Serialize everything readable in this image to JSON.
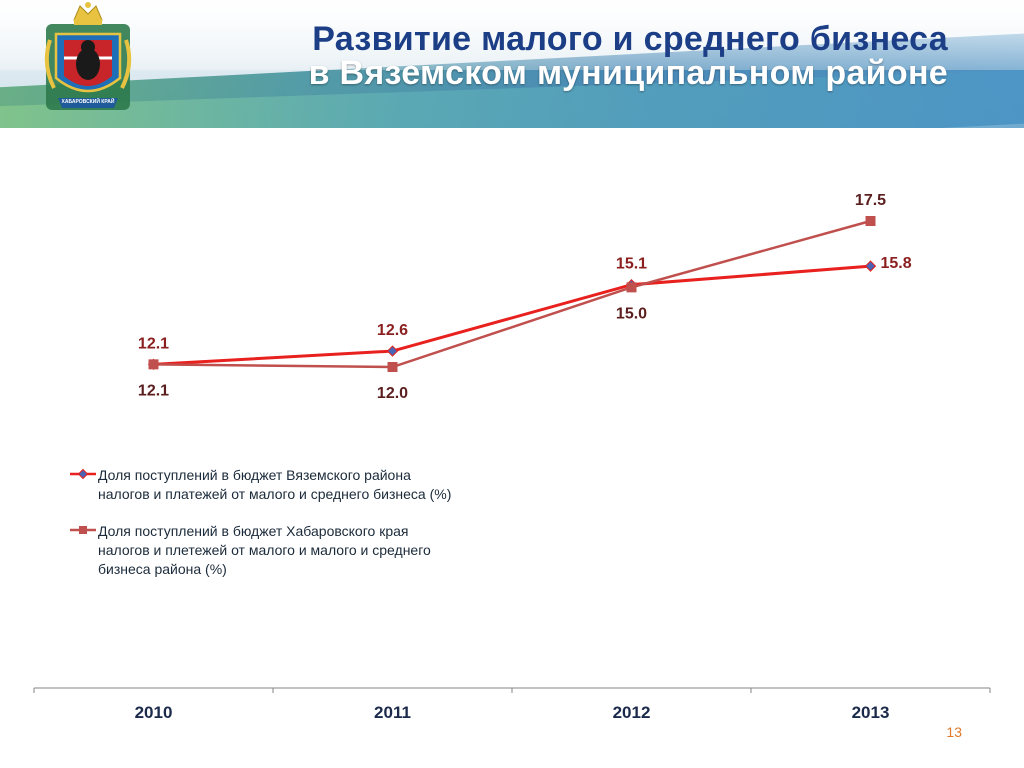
{
  "header": {
    "title_line1": "Развитие малого и среднего бизнеса",
    "title_line2": "в Вяземском муниципальном районе",
    "emblem_icon": "khabarovsk-krai-coat-of-arms-icon",
    "emblem_caption": "ХАБАРОВСКИЙ КРАЙ"
  },
  "chart_data": {
    "type": "line",
    "categories": [
      "2010",
      "2011",
      "2012",
      "2013"
    ],
    "ylim": [
      0,
      22
    ],
    "grid": false,
    "legend_position": "bottom-left",
    "series": [
      {
        "name": "Доля поступлений в бюджет Вяземского района налогов и платежей от малого и среднего бизнеса (%)",
        "values": [
          12.1,
          12.6,
          15.1,
          15.8
        ],
        "labels": [
          "12.1",
          "12.6",
          "15.1",
          "15.8"
        ],
        "color": "#e8201e",
        "marker": "diamond",
        "marker_color": "#4a63b3",
        "label_color": "#8b1f1f"
      },
      {
        "name": "Доля поступлений в бюджет Хабаровского края налогов и плетежей от малого и малого и среднего бизнеса района (%)",
        "values": [
          12.1,
          12.0,
          15.0,
          17.5
        ],
        "labels": [
          "12.1",
          "12.0",
          "15.0",
          "17.5"
        ],
        "color": "#c0504d",
        "marker": "square",
        "marker_color": "#c0504d",
        "label_color": "#5a1e1e"
      }
    ]
  },
  "legend": {
    "item1": "Доля поступлений в бюджет Вяземского района\nналогов и платежей от малого и среднего бизнеса (%)",
    "item2": "Доля поступлений в бюджет Хабаровского края\nналогов и плетежей от малого и малого и среднего\nбизнеса района (%)"
  },
  "page_number": "13"
}
